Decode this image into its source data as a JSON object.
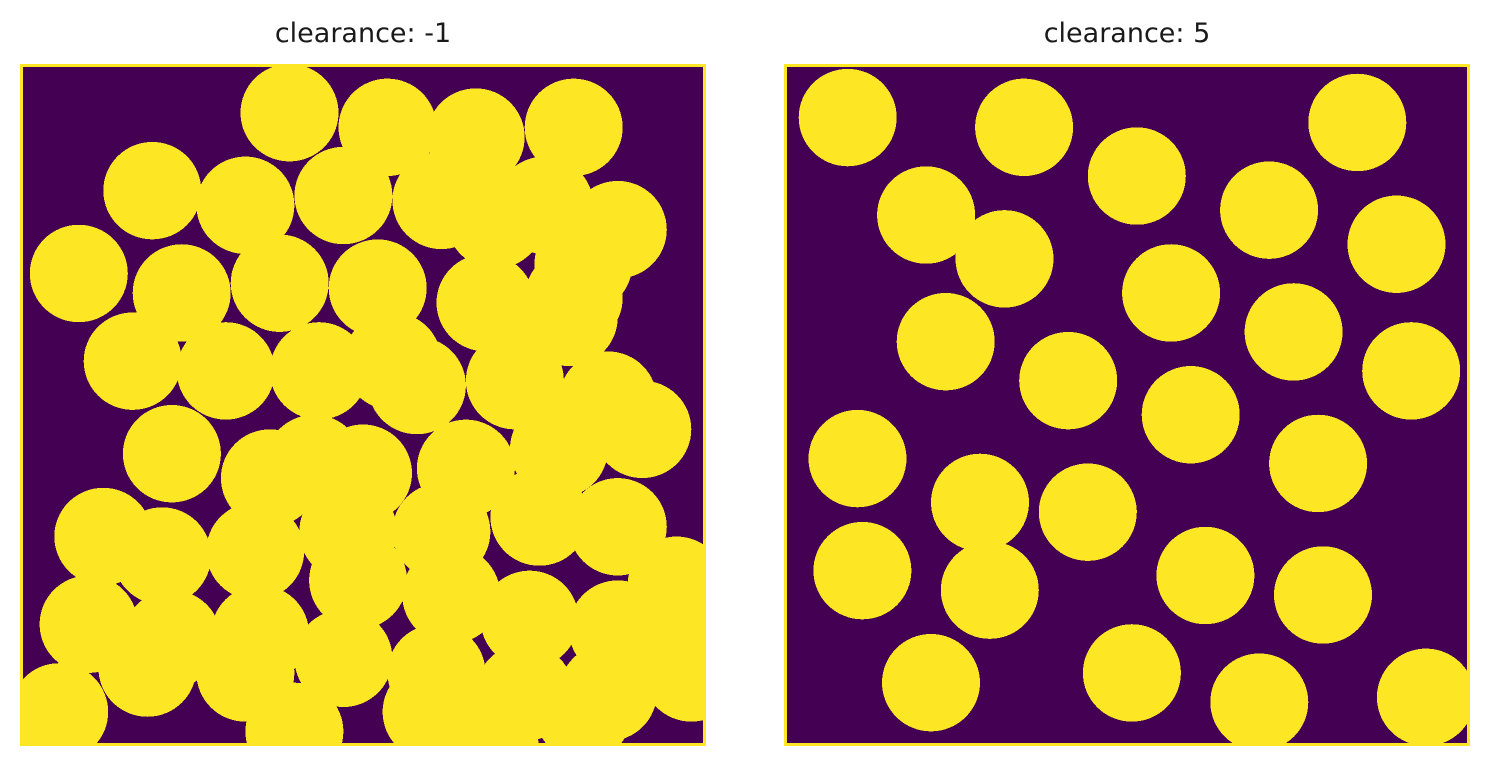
{
  "panels": [
    {
      "title": "clearance: -1",
      "clearance": -1,
      "background_color": "#440154",
      "disk_color": "#fde725",
      "border_color": "#fde725",
      "grid_size": 140,
      "disk_radius": 10,
      "disks": [
        [
          55,
          10
        ],
        [
          75,
          13
        ],
        [
          93,
          15
        ],
        [
          113,
          13
        ],
        [
          27,
          26
        ],
        [
          46,
          29
        ],
        [
          66,
          27
        ],
        [
          86,
          28
        ],
        [
          107,
          29
        ],
        [
          12,
          43
        ],
        [
          33,
          47
        ],
        [
          53,
          45
        ],
        [
          73,
          46
        ],
        [
          95,
          49
        ],
        [
          113,
          48
        ],
        [
          115,
          41
        ],
        [
          97,
          32
        ],
        [
          122,
          34
        ],
        [
          23,
          61
        ],
        [
          42,
          63
        ],
        [
          61,
          63
        ],
        [
          81,
          66
        ],
        [
          101,
          65
        ],
        [
          120,
          69
        ],
        [
          112,
          52
        ],
        [
          76,
          61
        ],
        [
          60,
          82
        ],
        [
          31,
          80
        ],
        [
          51,
          85
        ],
        [
          70,
          84
        ],
        [
          91,
          83
        ],
        [
          110,
          79
        ],
        [
          127,
          75
        ],
        [
          122,
          95
        ],
        [
          106,
          93
        ],
        [
          86,
          96
        ],
        [
          67,
          96
        ],
        [
          48,
          100
        ],
        [
          29,
          101
        ],
        [
          17,
          97
        ],
        [
          122,
          116
        ],
        [
          104,
          114
        ],
        [
          88,
          109
        ],
        [
          69,
          106
        ],
        [
          49,
          117
        ],
        [
          31,
          118
        ],
        [
          14,
          115
        ],
        [
          26,
          124
        ],
        [
          46,
          125
        ],
        [
          66,
          122
        ],
        [
          85,
          125
        ],
        [
          103,
          129
        ],
        [
          120,
          129
        ],
        [
          137,
          125
        ],
        [
          134,
          107
        ],
        [
          115,
          133
        ],
        [
          96,
          141
        ],
        [
          84,
          133
        ],
        [
          56,
          137
        ],
        [
          8,
          133
        ]
      ]
    },
    {
      "title": "clearance: 5",
      "clearance": 5,
      "background_color": "#440154",
      "disk_color": "#fde725",
      "border_color": "#fde725",
      "grid_size": 140,
      "disk_radius": 10,
      "disks": [
        [
          13,
          11
        ],
        [
          49,
          13
        ],
        [
          117,
          12
        ],
        [
          72,
          23
        ],
        [
          29,
          31
        ],
        [
          99,
          30
        ],
        [
          45,
          40
        ],
        [
          125,
          37
        ],
        [
          79,
          47
        ],
        [
          104,
          55
        ],
        [
          33,
          57
        ],
        [
          58,
          65
        ],
        [
          128,
          63
        ],
        [
          15,
          81
        ],
        [
          40,
          90
        ],
        [
          83,
          72
        ],
        [
          109,
          82
        ],
        [
          62,
          92
        ],
        [
          16,
          104
        ],
        [
          42,
          108
        ],
        [
          86,
          105
        ],
        [
          110,
          109
        ],
        [
          71,
          125
        ],
        [
          30,
          127
        ],
        [
          97,
          131
        ],
        [
          131,
          130
        ]
      ]
    }
  ]
}
